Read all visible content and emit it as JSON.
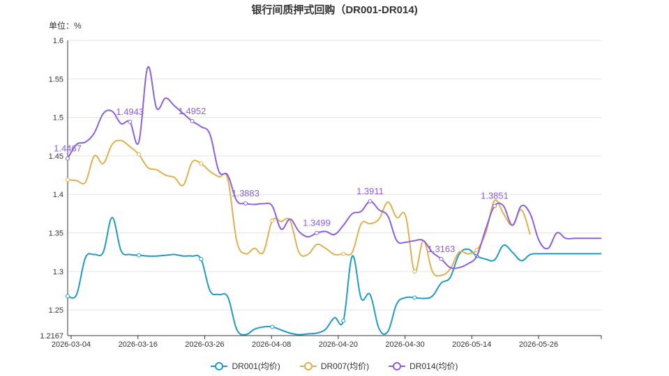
{
  "chart_data": {
    "type": "line",
    "title": "银行间质押式回购（DR001-DR014)",
    "unit_label": "单位：%",
    "ylim": [
      1.2167,
      1.6
    ],
    "y_ticks": [
      "1.2167",
      "1.25",
      "1.3",
      "1.35",
      "1.4",
      "1.45",
      "1.5",
      "1.55",
      "1.6"
    ],
    "x_ticks": [
      "2026-03-04",
      "2026-03-16",
      "2026-03-26",
      "2026-04-08",
      "2026-04-20",
      "2026-04-30",
      "2026-05-14",
      "2026-05-26"
    ],
    "grid": true,
    "legend_position": "bottom",
    "x_range": [
      0,
      60
    ],
    "series": [
      {
        "name": "DR001(均价)",
        "color": "#1f9ac5",
        "x": [
          0,
          1,
          2,
          3,
          4,
          5,
          6,
          7,
          8,
          9,
          10,
          11,
          12,
          13,
          14,
          15,
          16,
          17,
          18,
          19,
          20,
          21,
          22,
          23,
          24,
          25,
          26,
          27,
          28,
          29,
          30,
          31,
          32,
          33,
          34,
          35,
          36,
          37,
          38,
          39,
          40,
          41,
          42,
          43,
          44,
          45,
          46,
          47,
          48,
          49,
          50,
          51,
          52,
          53,
          54,
          55,
          56,
          57,
          58,
          59,
          60
        ],
        "values": [
          1.268,
          1.27,
          1.318,
          1.322,
          1.325,
          1.37,
          1.327,
          1.322,
          1.321,
          1.32,
          1.32,
          1.321,
          1.322,
          1.32,
          1.32,
          1.316,
          1.275,
          1.27,
          1.267,
          1.225,
          1.218,
          1.225,
          1.228,
          1.228,
          1.224,
          1.22,
          1.218,
          1.219,
          1.22,
          1.225,
          1.24,
          1.236,
          1.32,
          1.265,
          1.27,
          1.226,
          1.222,
          1.258,
          1.266,
          1.266,
          1.265,
          1.268,
          1.285,
          1.292,
          1.322,
          1.329,
          1.32,
          1.316,
          1.315,
          1.334,
          1.325,
          1.314,
          1.322,
          1.323,
          1.323,
          1.323,
          1.323,
          1.323,
          1.323,
          1.323,
          1.323
        ],
        "labels": [],
        "markers_x": [
          0,
          8,
          15,
          23,
          31,
          39,
          46
        ]
      },
      {
        "name": "DR007(均价)",
        "color": "#e0b050",
        "x": [
          0,
          1,
          2,
          3,
          4,
          5,
          6,
          7,
          8,
          9,
          10,
          11,
          12,
          13,
          14,
          15,
          16,
          17,
          18,
          19,
          20,
          21,
          22,
          23,
          24,
          25,
          26,
          27,
          28,
          29,
          30,
          31,
          32,
          33,
          34,
          35,
          36,
          37,
          38,
          39,
          40,
          41,
          42,
          43,
          44,
          45,
          46,
          47,
          48,
          49,
          50,
          51,
          52
        ],
        "values": [
          1.419,
          1.418,
          1.416,
          1.45,
          1.44,
          1.465,
          1.47,
          1.462,
          1.452,
          1.435,
          1.432,
          1.425,
          1.422,
          1.412,
          1.442,
          1.44,
          1.43,
          1.423,
          1.42,
          1.34,
          1.323,
          1.33,
          1.325,
          1.366,
          1.365,
          1.366,
          1.325,
          1.322,
          1.335,
          1.33,
          1.322,
          1.323,
          1.325,
          1.362,
          1.362,
          1.368,
          1.39,
          1.37,
          1.372,
          1.3,
          1.34,
          1.3,
          1.295,
          1.303,
          1.325,
          1.323,
          1.328,
          1.35,
          1.392,
          1.375,
          1.36,
          1.38,
          1.348
        ],
        "labels": [],
        "markers_x": [
          0,
          8,
          15,
          23,
          31,
          39,
          46
        ]
      },
      {
        "name": "DR014(均价)",
        "color": "#8b5fe0",
        "x": [
          0,
          1,
          2,
          3,
          4,
          5,
          6,
          7,
          8,
          9,
          10,
          11,
          12,
          13,
          14,
          15,
          16,
          17,
          18,
          19,
          20,
          21,
          22,
          23,
          24,
          25,
          26,
          27,
          28,
          29,
          30,
          31,
          32,
          33,
          34,
          35,
          36,
          37,
          38,
          39,
          40,
          41,
          42,
          43,
          44,
          45,
          46,
          47,
          48,
          49,
          50,
          51,
          52,
          53,
          54,
          55,
          56,
          57,
          58,
          59,
          60
        ],
        "values": [
          1.4467,
          1.465,
          1.468,
          1.48,
          1.505,
          1.508,
          1.492,
          1.4943,
          1.468,
          1.565,
          1.512,
          1.525,
          1.515,
          1.505,
          1.4952,
          1.488,
          1.478,
          1.43,
          1.425,
          1.392,
          1.3883,
          1.387,
          1.388,
          1.385,
          1.355,
          1.368,
          1.352,
          1.345,
          1.3499,
          1.352,
          1.348,
          1.36,
          1.375,
          1.378,
          1.3911,
          1.38,
          1.372,
          1.34,
          1.338,
          1.34,
          1.34,
          1.325,
          1.3163,
          1.305,
          1.305,
          1.31,
          1.32,
          1.355,
          1.3851,
          1.385,
          1.36,
          1.385,
          1.375,
          1.34,
          1.33,
          1.35,
          1.343,
          1.343,
          1.343,
          1.343,
          1.343
        ],
        "labels": [
          {
            "x": 0,
            "y": 1.4467,
            "text": "1.4467"
          },
          {
            "x": 7,
            "y": 1.4943,
            "text": "1.4943"
          },
          {
            "x": 14,
            "y": 1.4952,
            "text": "1.4952"
          },
          {
            "x": 20,
            "y": 1.3883,
            "text": "1.3883"
          },
          {
            "x": 28,
            "y": 1.3499,
            "text": "1.3499"
          },
          {
            "x": 34,
            "y": 1.3911,
            "text": "1.3911"
          },
          {
            "x": 42,
            "y": 1.3163,
            "text": "1.3163"
          },
          {
            "x": 48,
            "y": 1.3851,
            "text": "1.3851"
          }
        ],
        "markers_x": [
          0,
          7,
          14,
          20,
          28,
          34,
          42,
          48
        ]
      }
    ]
  }
}
